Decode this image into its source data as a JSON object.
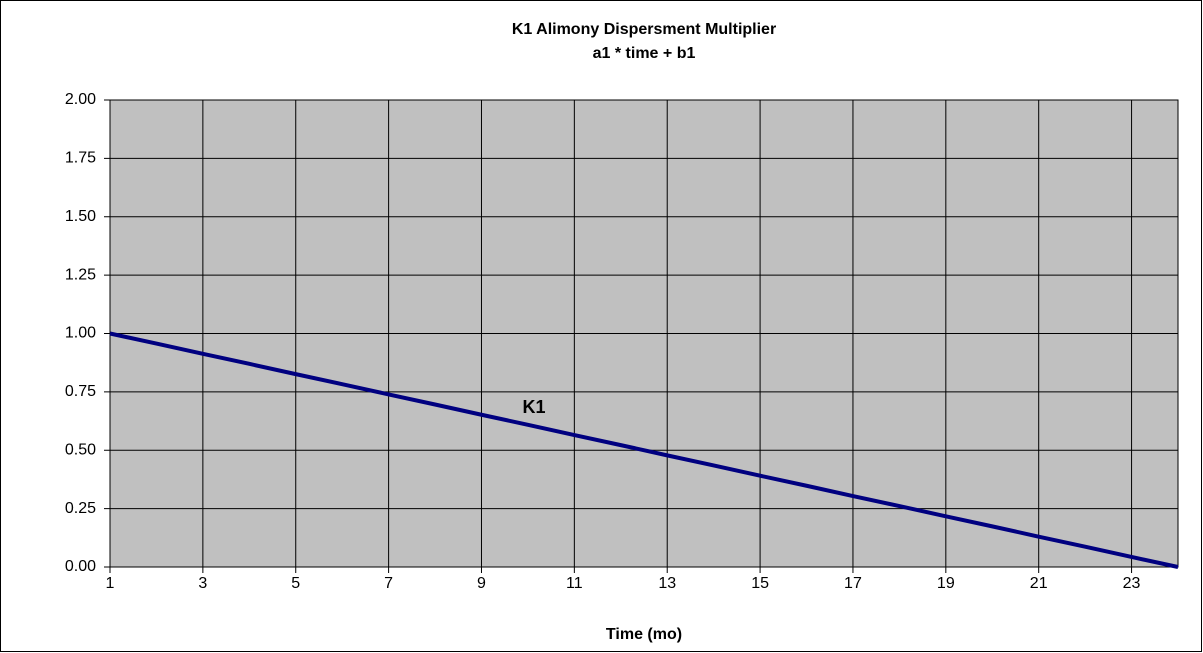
{
  "chart_data": {
    "type": "line",
    "title": "K1 Alimony Dispersment Multiplier",
    "subtitle": "a1 * time + b1",
    "xlabel": "Time (mo)",
    "x": [
      1,
      2,
      3,
      4,
      5,
      6,
      7,
      8,
      9,
      10,
      11,
      12,
      13,
      14,
      15,
      16,
      17,
      18,
      19,
      20,
      21,
      22,
      23,
      24
    ],
    "series": [
      {
        "name": "K1",
        "color": "#000080",
        "values": [
          1.0,
          0.957,
          0.913,
          0.87,
          0.826,
          0.783,
          0.739,
          0.696,
          0.652,
          0.609,
          0.565,
          0.522,
          0.478,
          0.435,
          0.391,
          0.348,
          0.304,
          0.261,
          0.217,
          0.174,
          0.13,
          0.087,
          0.043,
          0.0
        ]
      }
    ],
    "xlim": [
      1,
      24
    ],
    "xticks": [
      1,
      3,
      5,
      7,
      9,
      11,
      13,
      15,
      17,
      19,
      21,
      23
    ],
    "ylim": [
      0,
      2
    ],
    "yticks": [
      {
        "value": 0,
        "label": "0.00"
      },
      {
        "value": 0.25,
        "label": "0.25"
      },
      {
        "value": 0.5,
        "label": "0.50"
      },
      {
        "value": 0.75,
        "label": "0.75"
      },
      {
        "value": 1,
        "label": "1.00"
      },
      {
        "value": 1.25,
        "label": "1.25"
      },
      {
        "value": 1.5,
        "label": "1.50"
      },
      {
        "value": 1.75,
        "label": "1.75"
      },
      {
        "value": 2,
        "label": "2.00"
      }
    ],
    "grid": true,
    "plot_background": "#c0c0c0"
  }
}
